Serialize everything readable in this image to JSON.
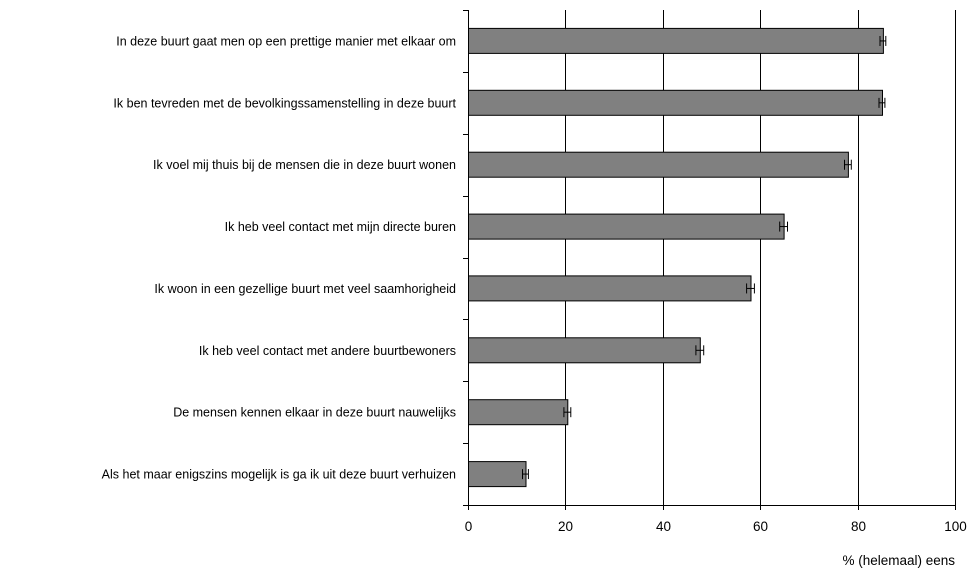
{
  "chart_data": {
    "type": "bar",
    "orientation": "horizontal",
    "categories": [
      "In deze buurt gaat men op een prettige manier met elkaar om",
      "Ik ben tevreden met de bevolkingssamenstelling in deze buurt",
      "Ik voel mij thuis bij de mensen die in deze buurt wonen",
      "Ik heb veel contact met mijn directe buren",
      "Ik woon in een gezellige buurt met veel saamhorigheid",
      "Ik heb veel contact met andere buurtbewoners",
      "De mensen kennen elkaar in deze buurt nauwelijks",
      "Als het maar enigszins mogelijk is ga ik uit deze buurt verhuizen"
    ],
    "values": [
      85.2,
      85.0,
      78.0,
      64.8,
      58.0,
      47.6,
      20.4,
      11.8
    ],
    "error": [
      0.6,
      0.6,
      0.7,
      0.8,
      0.8,
      0.8,
      0.7,
      0.6
    ],
    "xlim": [
      0,
      100
    ],
    "xticks": [
      "0",
      "20",
      "40",
      "60",
      "80",
      "100"
    ],
    "xlabel": "% (helemaal) eens",
    "grid": "vertical",
    "colors": {
      "bar": "#808080",
      "bar_stroke": "#000000",
      "grid": "#000000"
    }
  }
}
